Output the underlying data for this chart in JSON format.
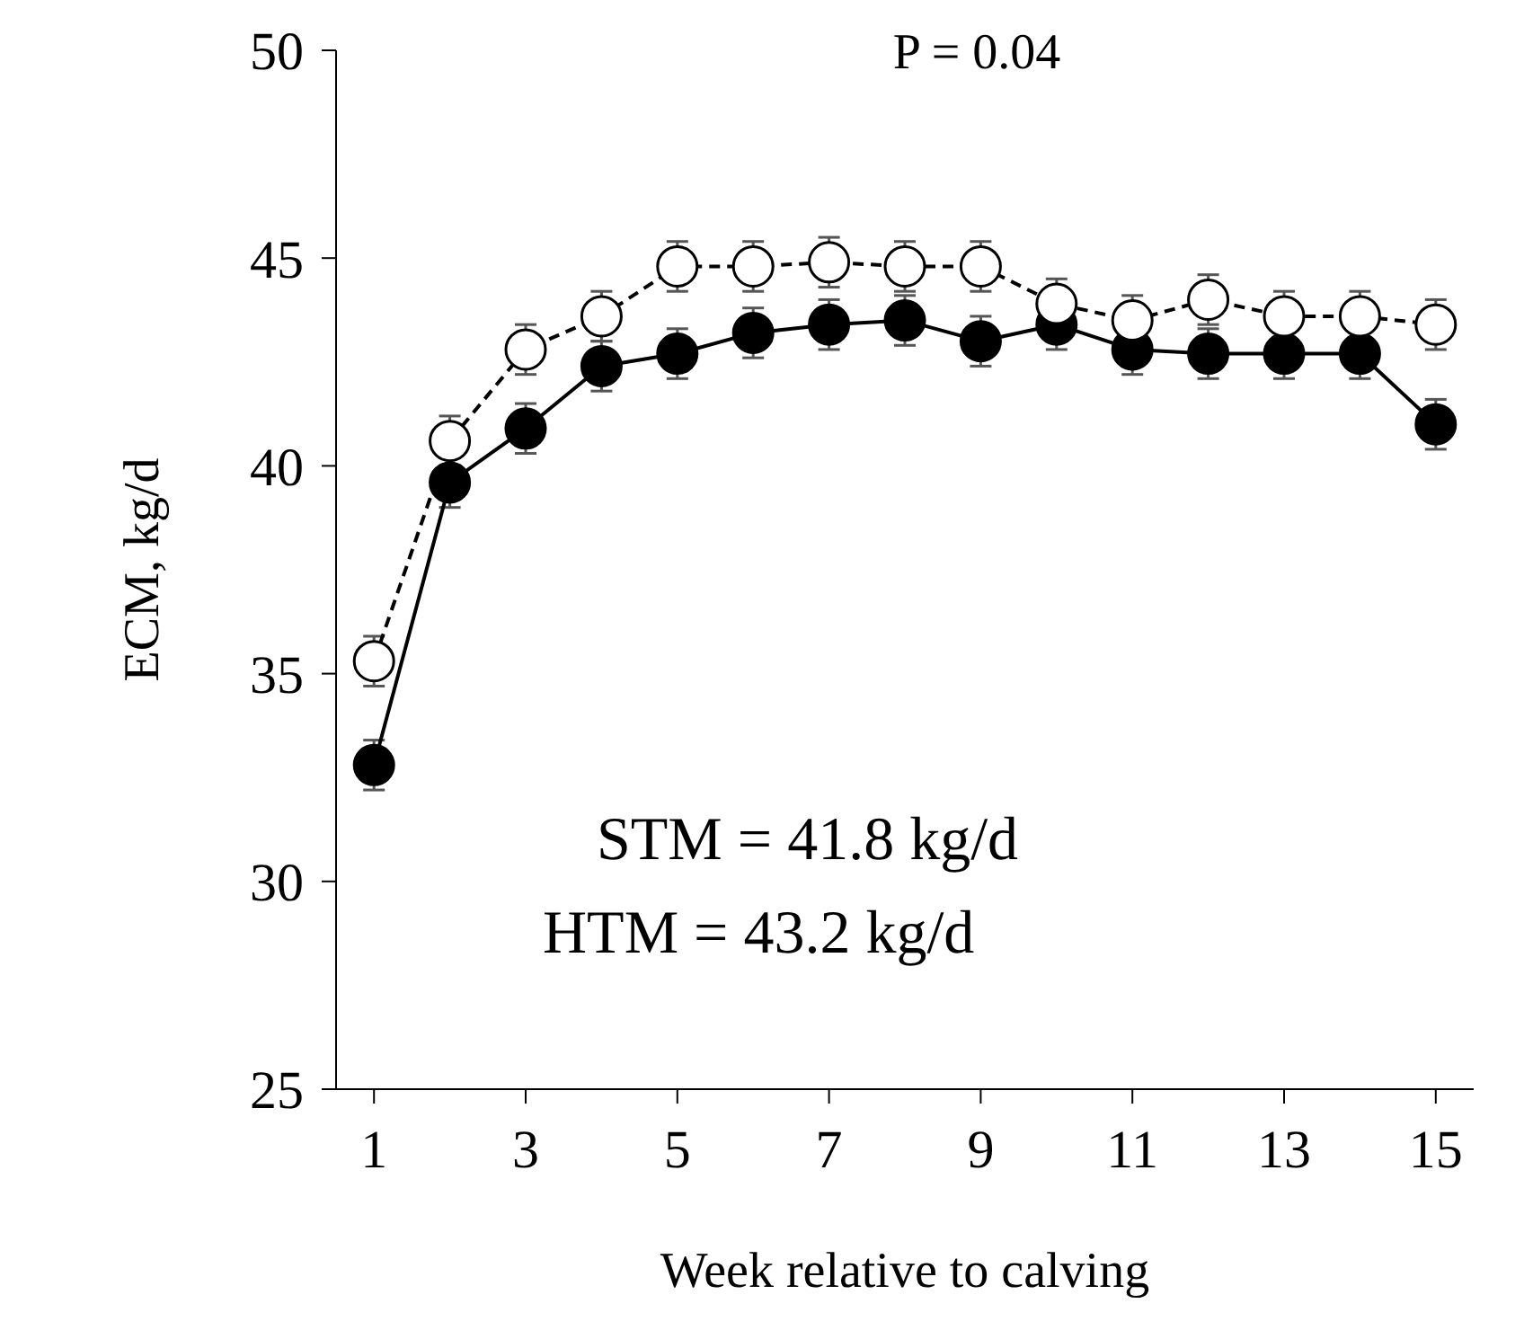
{
  "chart_data": {
    "type": "line",
    "xlabel": "Week relative to calving",
    "ylabel": "ECM, kg/d",
    "x": [
      1,
      2,
      3,
      4,
      5,
      6,
      7,
      8,
      9,
      10,
      11,
      12,
      13,
      14,
      15
    ],
    "series": [
      {
        "color": "#000000",
        "line_style": "solid",
        "values": [
          32.8,
          39.6,
          40.9,
          42.4,
          42.7,
          43.2,
          43.4,
          43.5,
          43.0,
          43.4,
          42.8,
          42.7,
          42.7,
          42.7,
          41.0
        ],
        "errors": [
          0.6,
          0.6,
          0.6,
          0.6,
          0.6,
          0.6,
          0.6,
          0.6,
          0.6,
          0.6,
          0.6,
          0.6,
          0.6,
          0.6,
          0.6
        ]
      },
      {
        "color": "#000000",
        "line_style": "dashed",
        "values": [
          35.3,
          40.6,
          42.8,
          43.6,
          44.8,
          44.8,
          44.9,
          44.8,
          44.8,
          43.9,
          43.5,
          44.0,
          43.6,
          43.6,
          43.4
        ],
        "errors": [
          0.6,
          0.6,
          0.6,
          0.6,
          0.6,
          0.6,
          0.6,
          0.6,
          0.6,
          0.6,
          0.6,
          0.6,
          0.6,
          0.6,
          0.6
        ]
      }
    ],
    "marker": "circle",
    "xlim": [
      0.5,
      15.5
    ],
    "xticks": [
      1,
      3,
      5,
      7,
      9,
      11,
      13,
      15
    ],
    "ylim": [
      25,
      50
    ],
    "yticks": [
      25,
      30,
      35,
      40,
      45,
      50
    ],
    "grid": false,
    "annotations": [
      "P = 0.04",
      "STM = 41.8 kg/d",
      "HTM = 43.2 kg/d"
    ]
  }
}
